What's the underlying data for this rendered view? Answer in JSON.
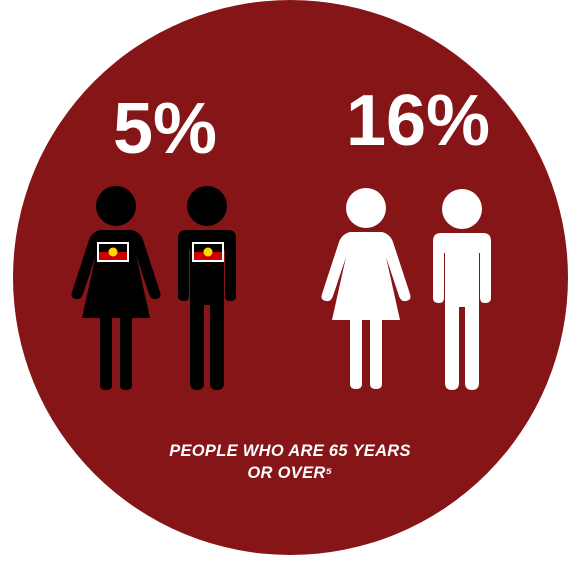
{
  "colors": {
    "circle_fill": "#861517",
    "indigenous_figure": "#000000",
    "general_figure": "#ffffff",
    "flag_red": "#CC0000",
    "flag_black": "#000000",
    "flag_yellow": "#FFD700"
  },
  "stats": {
    "indigenous_percent": "5%",
    "general_percent": "16%"
  },
  "caption": {
    "line1": "PEOPLE WHO ARE 65 YEARS",
    "line2": "OR OVER⁵"
  },
  "icons": {
    "indigenous_female": "female-figure-icon",
    "indigenous_male": "male-figure-icon",
    "general_female": "female-figure-icon",
    "general_male": "male-figure-icon",
    "flag": "aboriginal-flag-icon"
  }
}
